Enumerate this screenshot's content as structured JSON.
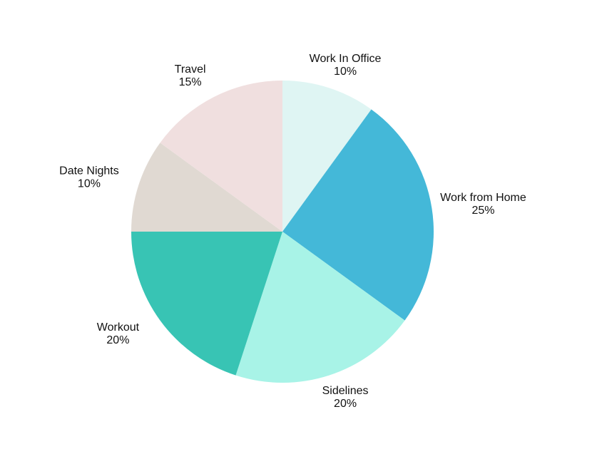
{
  "chart_data": {
    "type": "pie",
    "categories": [
      "Work In Office",
      "Work from Home",
      "Sidelines",
      "Workout",
      "Date Nights",
      "Travel"
    ],
    "values": [
      10,
      25,
      20,
      20,
      10,
      15
    ],
    "value_labels": [
      "10%",
      "25%",
      "20%",
      "20%",
      "10%",
      "15%"
    ],
    "colors": [
      "#dff5f3",
      "#44b8d8",
      "#a8f3e7",
      "#38c4b4",
      "#e0d9d2",
      "#f0dfdf"
    ]
  }
}
